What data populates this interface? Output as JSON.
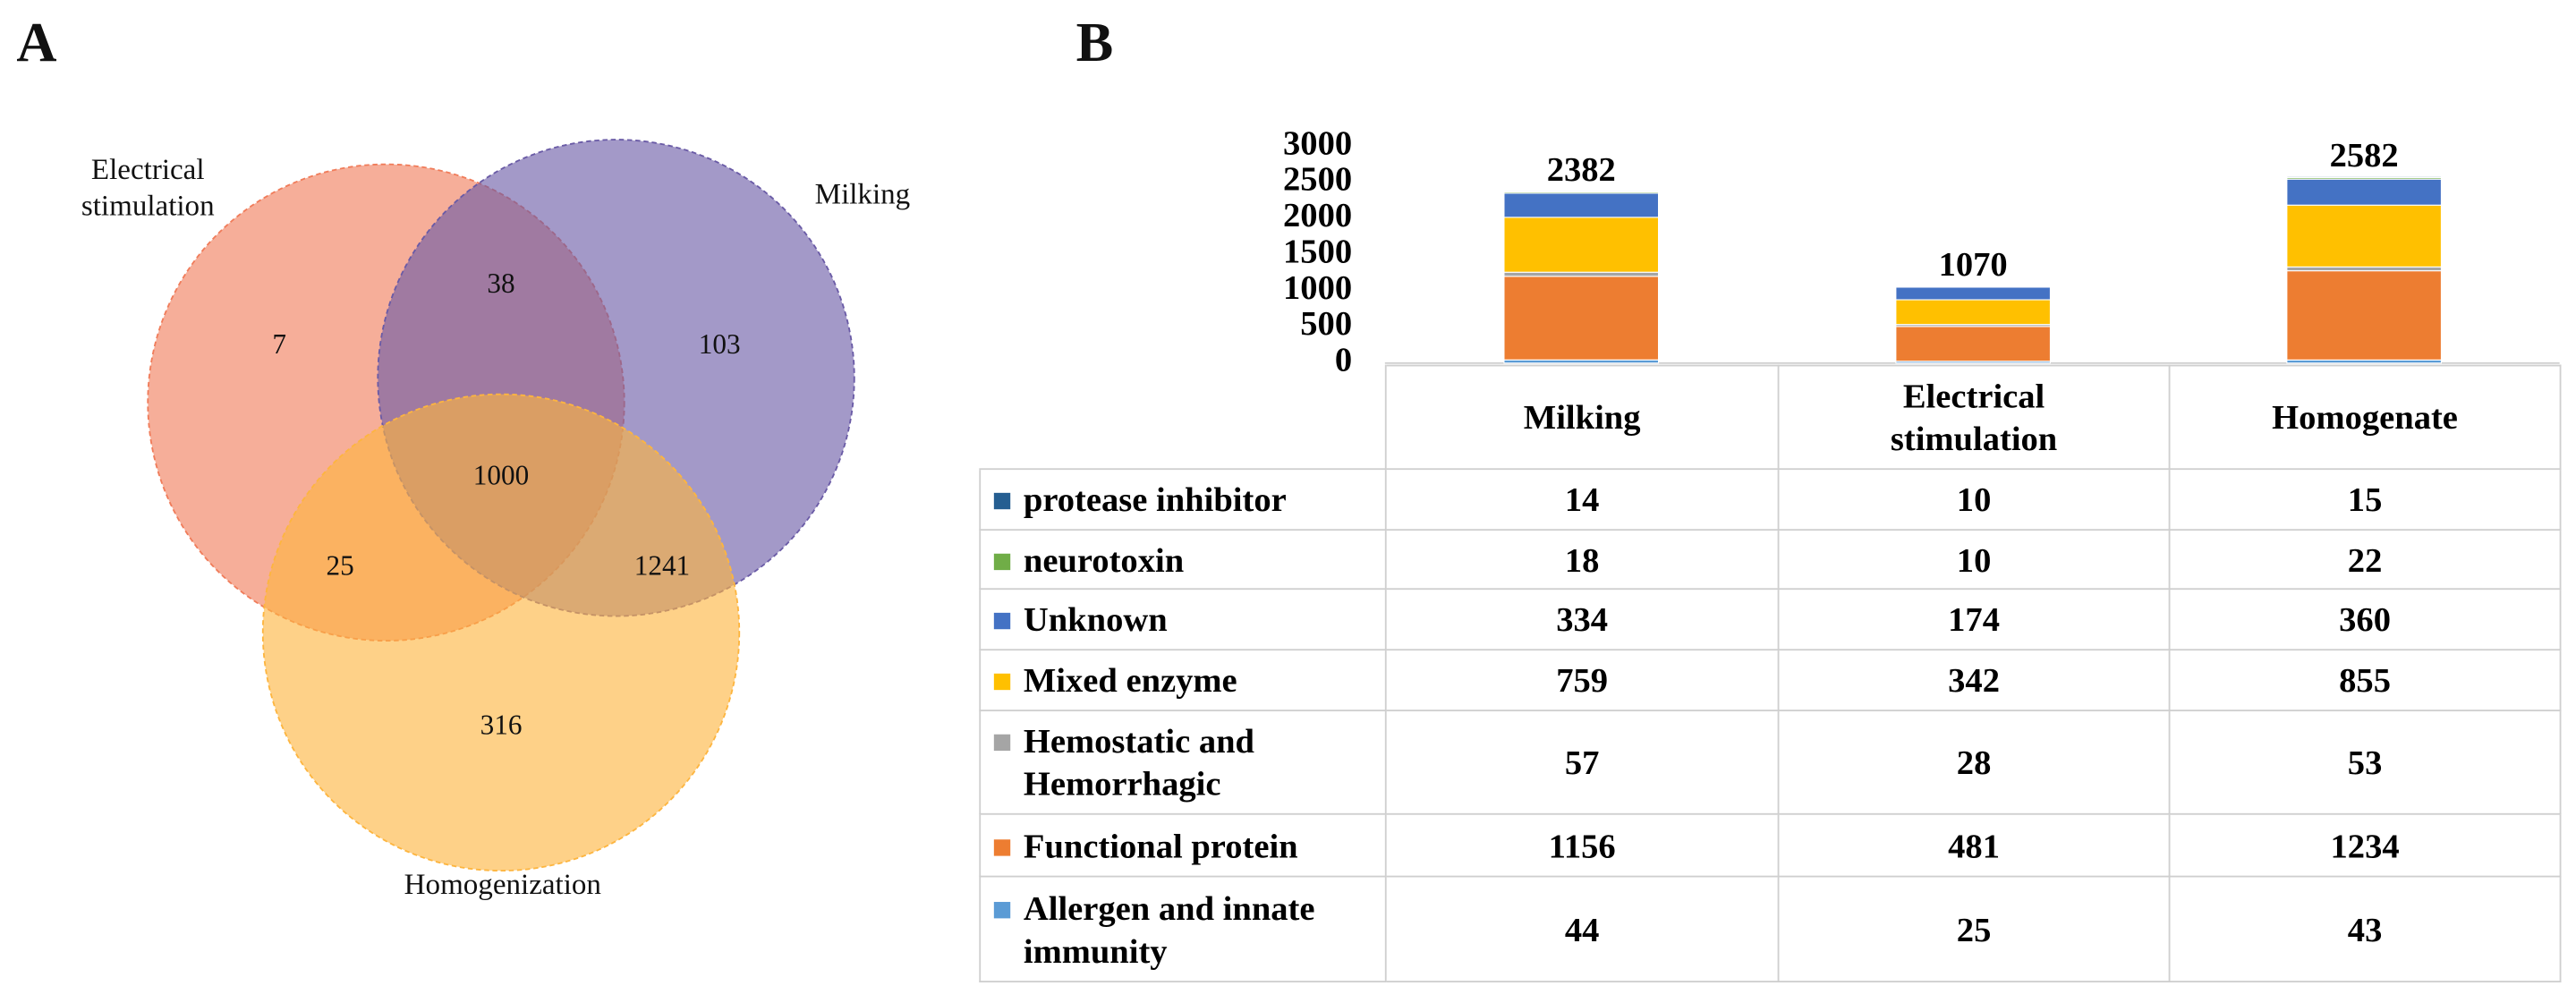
{
  "panel_labels": [
    "A",
    "B"
  ],
  "venn": {
    "sets": [
      {
        "label": "Electrical stimulation",
        "color": "#f07c5a"
      },
      {
        "label": "Milking",
        "color": "#6a5ba6"
      },
      {
        "label": "Homogenization",
        "color": "#fdb53f"
      }
    ],
    "regions": [
      7,
      38,
      103,
      1000,
      25,
      1241,
      316
    ]
  },
  "chart_data": {
    "type": "bar",
    "stacked": true,
    "categories": [
      "Milking",
      "Electrical stimulation",
      "Homogenate"
    ],
    "series": [
      {
        "name": "protease inhibitor",
        "color": "#255e91",
        "values": [
          14,
          10,
          15
        ]
      },
      {
        "name": "neurotoxin",
        "color": "#70ad47",
        "values": [
          18,
          10,
          22
        ]
      },
      {
        "name": "Unknown",
        "color": "#4472c4",
        "values": [
          334,
          174,
          360
        ]
      },
      {
        "name": "Mixed enzyme",
        "color": "#ffc000",
        "values": [
          759,
          342,
          855
        ]
      },
      {
        "name": "Hemostatic and Hemorrhagic",
        "color": "#a5a5a5",
        "values": [
          57,
          28,
          53
        ]
      },
      {
        "name": "Functional protein",
        "color": "#ed7d31",
        "values": [
          1156,
          481,
          1234
        ]
      },
      {
        "name": "Allergen and innate immunity",
        "color": "#5b9bd5",
        "values": [
          44,
          25,
          43
        ]
      }
    ],
    "totals": [
      2382,
      1070,
      2582
    ],
    "ylim": [
      0,
      3000
    ],
    "yticks": [
      0,
      500,
      1000,
      1500,
      2000,
      2500,
      3000
    ]
  }
}
